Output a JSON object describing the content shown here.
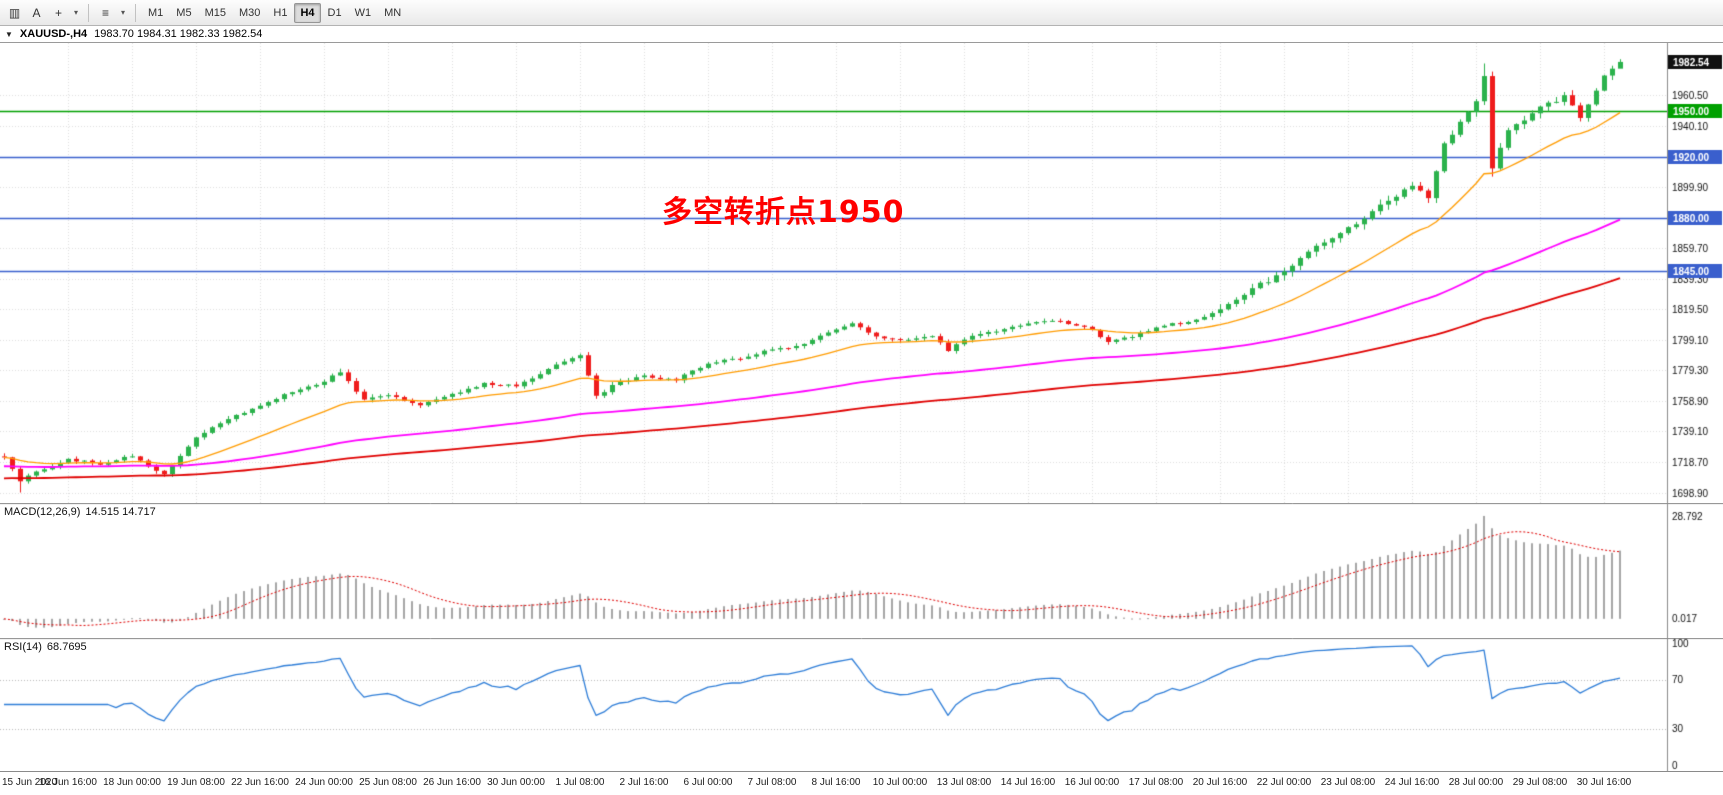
{
  "toolbar": {
    "icon_groups": [
      [
        {
          "name": "chart-type-icon",
          "glyph": "▥"
        },
        {
          "name": "text-annotate-icon",
          "glyph": "A"
        },
        {
          "name": "crosshair-icon",
          "glyph": "+"
        },
        {
          "name": "chevron-down-icon",
          "glyph": "▾"
        }
      ],
      [
        {
          "name": "draw-tools-icon",
          "glyph": "≡"
        },
        {
          "name": "chevron-down-icon",
          "glyph": "▾"
        }
      ]
    ],
    "timeframes": [
      "M1",
      "M5",
      "M15",
      "M30",
      "H1",
      "H4",
      "D1",
      "W1",
      "MN"
    ],
    "active_timeframe": "H4"
  },
  "chart": {
    "header": {
      "marker": "▼",
      "symbol_timeframe": "XAUUSD-,H4",
      "ohlc": "1983.70 1984.31 1982.33 1982.54"
    },
    "annotation": {
      "text": "多空转折点1950",
      "color": "#ff0000"
    }
  },
  "chart_data": {
    "type": "candlestick",
    "symbol": "XAUUSD-",
    "timeframe": "H4",
    "price_axis": {
      "range": [
        1692,
        1995
      ],
      "grid_labels": [
        "1960.50",
        "1940.10",
        "1899.90",
        "1859.70",
        "1839.30",
        "1819.50",
        "1799.10",
        "1779.30",
        "1758.90",
        "1739.10",
        "1718.70",
        "1698.90"
      ],
      "last_price": "1982.54"
    },
    "hlines": [
      {
        "price": 1950.0,
        "label": "1950.00",
        "color": "#00a000"
      },
      {
        "price": 1920.0,
        "label": "1920.00",
        "color": "#3a5fcd"
      },
      {
        "price": 1880.0,
        "label": "1880.00",
        "color": "#3a5fcd"
      },
      {
        "price": 1845.0,
        "label": "1845.00",
        "color": "#3a5fcd"
      }
    ],
    "bars": {
      "count": 203,
      "per_label": 8,
      "close_anchors": [
        [
          0,
          1722
        ],
        [
          2,
          1706
        ],
        [
          4,
          1713
        ],
        [
          8,
          1721
        ],
        [
          12,
          1717
        ],
        [
          16,
          1723
        ],
        [
          20,
          1711
        ],
        [
          24,
          1735
        ],
        [
          28,
          1747
        ],
        [
          32,
          1756
        ],
        [
          36,
          1765
        ],
        [
          40,
          1772
        ],
        [
          42,
          1778
        ],
        [
          45,
          1760
        ],
        [
          48,
          1763
        ],
        [
          52,
          1756
        ],
        [
          56,
          1764
        ],
        [
          60,
          1771
        ],
        [
          64,
          1769
        ],
        [
          68,
          1780
        ],
        [
          72,
          1789
        ],
        [
          74,
          1763
        ],
        [
          77,
          1772
        ],
        [
          80,
          1776
        ],
        [
          84,
          1773
        ],
        [
          88,
          1784
        ],
        [
          92,
          1787
        ],
        [
          96,
          1793
        ],
        [
          100,
          1797
        ],
        [
          104,
          1806
        ],
        [
          106,
          1810
        ],
        [
          109,
          1802
        ],
        [
          112,
          1799
        ],
        [
          116,
          1802
        ],
        [
          118,
          1792
        ],
        [
          120,
          1800
        ],
        [
          124,
          1805
        ],
        [
          128,
          1810
        ],
        [
          132,
          1812
        ],
        [
          136,
          1806
        ],
        [
          138,
          1798
        ],
        [
          141,
          1801
        ],
        [
          144,
          1808
        ],
        [
          148,
          1811
        ],
        [
          152,
          1819
        ],
        [
          156,
          1833
        ],
        [
          160,
          1844
        ],
        [
          164,
          1861
        ],
        [
          168,
          1873
        ],
        [
          172,
          1888
        ],
        [
          176,
          1901
        ],
        [
          178,
          1893
        ],
        [
          180,
          1929
        ],
        [
          182,
          1943
        ],
        [
          184,
          1957
        ],
        [
          185,
          1973
        ],
        [
          186,
          1913
        ],
        [
          188,
          1937
        ],
        [
          192,
          1953
        ],
        [
          195,
          1960
        ],
        [
          197,
          1945
        ],
        [
          200,
          1973
        ],
        [
          202,
          1982.54
        ]
      ],
      "wick_overrides": [
        [
          2,
          "l",
          1698.9
        ],
        [
          42,
          "h",
          1780.5
        ],
        [
          106,
          "h",
          1811.5
        ],
        [
          185,
          "h",
          1981.5
        ],
        [
          186,
          "l",
          1907.0
        ],
        [
          202,
          "h",
          1984.31
        ],
        [
          202,
          "l",
          1979.0
        ]
      ]
    },
    "moving_averages": [
      {
        "name": "ma-fast",
        "period": 21,
        "color_key": "ma_fast"
      },
      {
        "name": "ma-mid",
        "period": 89,
        "color_key": "ma_mid"
      },
      {
        "name": "ma-slow",
        "period": 160,
        "color_key": "ma_slow"
      }
    ],
    "colors": {
      "up": "#2bb24c",
      "down": "#ef1c1c",
      "grid": "#dedede",
      "ma_fast": "#ff9c00",
      "ma_mid": "#ff00ff",
      "ma_slow": "#e00000",
      "macd_hist": "#a6a6a6",
      "macd_signal": "#e00000",
      "rsi_line": "#2f7ed8"
    },
    "time_labels": [
      "15 Jun 2020",
      "16 Jun 16:00",
      "18 Jun 00:00",
      "19 Jun 08:00",
      "22 Jun 16:00",
      "24 Jun 00:00",
      "25 Jun 08:00",
      "26 Jun 16:00",
      "30 Jun 00:00",
      "1 Jul 08:00",
      "2 Jul 16:00",
      "6 Jul 00:00",
      "7 Jul 08:00",
      "8 Jul 16:00",
      "10 Jul 00:00",
      "13 Jul 08:00",
      "14 Jul 16:00",
      "16 Jul 00:00",
      "17 Jul 08:00",
      "20 Jul 16:00",
      "22 Jul 00:00",
      "23 Jul 08:00",
      "24 Jul 16:00",
      "28 Jul 00:00",
      "29 Jul 08:00",
      "30 Jul 16:00"
    ],
    "macd": {
      "label": "MACD(12,26,9)",
      "values_text": "14.515 14.717",
      "fast": 12,
      "slow": 26,
      "signal": 9,
      "axis_labels": [
        {
          "text": "28.792",
          "value": 28.792
        },
        {
          "text": "0.017",
          "value": 0
        }
      ]
    },
    "rsi": {
      "label": "RSI(14)",
      "value_text": "68.7695",
      "period": 14,
      "levels": [
        70,
        30
      ],
      "axis_labels": [
        {
          "text": "100",
          "value": 100
        },
        {
          "text": "70",
          "value": 70
        },
        {
          "text": "30",
          "value": 30
        },
        {
          "text": "0",
          "value": 0
        }
      ]
    }
  }
}
